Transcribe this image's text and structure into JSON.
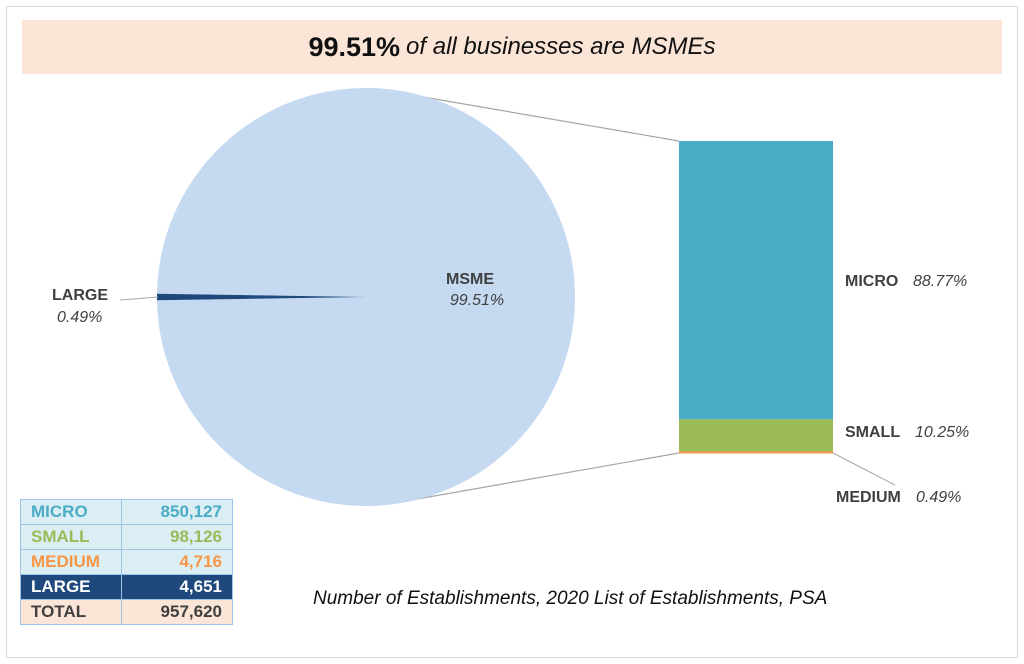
{
  "banner": {
    "highlight": "99.51%",
    "text": "of all businesses are MSMEs"
  },
  "chart_data": [
    {
      "type": "pie",
      "slices": [
        {
          "label": "MSME",
          "value": 99.51,
          "value_label": "99.51%",
          "color": "#c5d9f1"
        },
        {
          "label": "LARGE",
          "value": 0.49,
          "value_label": "0.49%",
          "color": "#1f497d"
        }
      ]
    },
    {
      "type": "bar",
      "stacked": true,
      "segments": [
        {
          "label": "MICRO",
          "value": 88.77,
          "value_label": "88.77%",
          "color": "#4bacc6"
        },
        {
          "label": "SMALL",
          "value": 10.25,
          "value_label": "10.25%",
          "color": "#9bbb59"
        },
        {
          "label": "MEDIUM",
          "value": 0.49,
          "value_label": "0.49%",
          "color": "#f79646"
        }
      ]
    }
  ],
  "table": {
    "rows": [
      {
        "label": "MICRO",
        "value": "850,127",
        "color": "#4bacc6",
        "bg": "#dbeef4"
      },
      {
        "label": "SMALL",
        "value": "98,126",
        "color": "#9bbb59",
        "bg": "#dbeef4"
      },
      {
        "label": "MEDIUM",
        "value": "4,716",
        "color": "#f79646",
        "bg": "#dbeef4"
      },
      {
        "label": "LARGE",
        "value": "4,651",
        "color": "#ffffff",
        "bg": "#1f497d"
      },
      {
        "label": "TOTAL",
        "value": "957,620",
        "color": "#404040",
        "bg": "#fbe5d6"
      }
    ]
  },
  "source": "Number of Establishments, 2020 List of Establishments, PSA"
}
